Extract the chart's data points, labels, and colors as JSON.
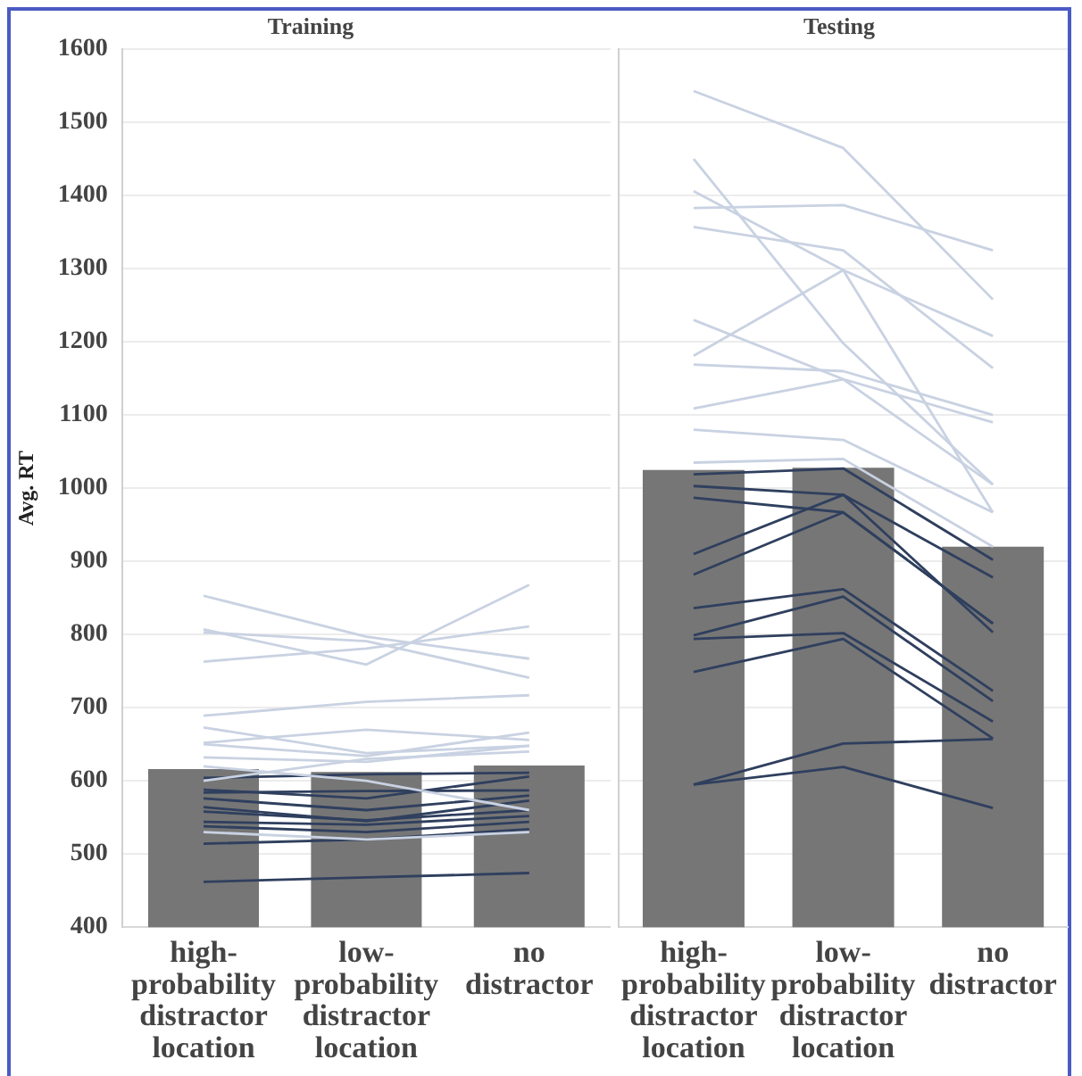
{
  "chart_data": [
    {
      "type": "bar",
      "title": "Training",
      "ylabel": "Avg. RT",
      "categories": [
        "high-probability distractor location",
        "low-probability distractor location",
        "no distractor"
      ],
      "ylim": [
        400,
        1600
      ],
      "yticks": [
        400,
        500,
        600,
        700,
        800,
        900,
        1000,
        1100,
        1200,
        1300,
        1400,
        1500,
        1600
      ],
      "grid": "y",
      "marker": "none",
      "line_style": "solid",
      "series": [
        {
          "color": "#767676",
          "values": [
            616,
            612,
            621
          ]
        },
        {
          "type": "line",
          "color": "#c9d2e2",
          "values": [
            853,
            797,
            767
          ]
        },
        {
          "type": "line",
          "color": "#c9d2e2",
          "values": [
            807,
            759,
            868
          ]
        },
        {
          "type": "line",
          "color": "#c9d2e2",
          "values": [
            803,
            791,
            741
          ]
        },
        {
          "type": "line",
          "color": "#c9d2e2",
          "values": [
            763,
            781,
            811
          ]
        },
        {
          "type": "line",
          "color": "#c9d2e2",
          "values": [
            689,
            708,
            717
          ]
        },
        {
          "type": "line",
          "color": "#c9d2e2",
          "values": [
            673,
            638,
            648
          ]
        },
        {
          "type": "line",
          "color": "#c9d2e2",
          "values": [
            652,
            670,
            656
          ]
        },
        {
          "type": "line",
          "color": "#c9d2e2",
          "values": [
            650,
            634,
            666
          ]
        },
        {
          "type": "line",
          "color": "#c9d2e2",
          "values": [
            632,
            626,
            648
          ]
        },
        {
          "type": "line",
          "color": "#c9d2e2",
          "values": [
            600,
            630,
            640
          ]
        },
        {
          "type": "line",
          "color": "#c9d2e2",
          "values": [
            620,
            600,
            560
          ]
        },
        {
          "type": "line",
          "color": "#c9d2e2",
          "values": [
            530,
            520,
            530
          ]
        },
        {
          "type": "line",
          "color": "#2f3f5e",
          "values": [
            604,
            609,
            611
          ]
        },
        {
          "type": "line",
          "color": "#2f3f5e",
          "values": [
            588,
            576,
            606
          ]
        },
        {
          "type": "line",
          "color": "#2f3f5e",
          "values": [
            584,
            586,
            587
          ]
        },
        {
          "type": "line",
          "color": "#2f3f5e",
          "values": [
            576,
            560,
            580
          ]
        },
        {
          "type": "line",
          "color": "#2f3f5e",
          "values": [
            564,
            545,
            573
          ]
        },
        {
          "type": "line",
          "color": "#2f3f5e",
          "values": [
            558,
            546,
            560
          ]
        },
        {
          "type": "line",
          "color": "#2f3f5e",
          "values": [
            544,
            540,
            552
          ]
        },
        {
          "type": "line",
          "color": "#2f3f5e",
          "values": [
            538,
            530,
            544
          ]
        },
        {
          "type": "line",
          "color": "#2f3f5e",
          "values": [
            514,
            520,
            534
          ]
        },
        {
          "type": "line",
          "color": "#2f3f5e",
          "values": [
            462,
            468,
            474
          ]
        }
      ]
    },
    {
      "type": "bar",
      "title": "Testing",
      "categories": [
        "high-probability distractor location",
        "low-probability distractor location",
        "no distractor"
      ],
      "ylim": [
        400,
        1600
      ],
      "yticks": [
        400,
        500,
        600,
        700,
        800,
        900,
        1000,
        1100,
        1200,
        1300,
        1400,
        1500,
        1600
      ],
      "tick_labels": "x",
      "grid": "y",
      "marker": "none",
      "line_style": "solid",
      "series": [
        {
          "color": "#767676",
          "values": [
            1025,
            1028,
            920
          ]
        },
        {
          "type": "line",
          "color": "#c9d2e2",
          "values": [
            1543,
            1465,
            1258
          ]
        },
        {
          "type": "line",
          "color": "#c9d2e2",
          "values": [
            1383,
            1387,
            1325
          ]
        },
        {
          "type": "line",
          "color": "#c9d2e2",
          "values": [
            1450,
            1198,
            1005
          ]
        },
        {
          "type": "line",
          "color": "#c9d2e2",
          "values": [
            1406,
            1298,
            1208
          ]
        },
        {
          "type": "line",
          "color": "#c9d2e2",
          "values": [
            1357,
            1325,
            1164
          ]
        },
        {
          "type": "line",
          "color": "#c9d2e2",
          "values": [
            1181,
            1298,
            967
          ]
        },
        {
          "type": "line",
          "color": "#c9d2e2",
          "values": [
            1230,
            1149,
            1090
          ]
        },
        {
          "type": "line",
          "color": "#c9d2e2",
          "values": [
            1169,
            1160,
            1100
          ]
        },
        {
          "type": "line",
          "color": "#c9d2e2",
          "values": [
            1109,
            1149,
            1005
          ]
        },
        {
          "type": "line",
          "color": "#c9d2e2",
          "values": [
            1080,
            1066,
            967
          ]
        },
        {
          "type": "line",
          "color": "#c9d2e2",
          "values": [
            1035,
            1040,
            920
          ]
        },
        {
          "type": "line",
          "color": "#2f3f5e",
          "values": [
            1019,
            1027,
            902
          ]
        },
        {
          "type": "line",
          "color": "#2f3f5e",
          "values": [
            1003,
            991,
            878
          ]
        },
        {
          "type": "line",
          "color": "#2f3f5e",
          "values": [
            987,
            967,
            815
          ]
        },
        {
          "type": "line",
          "color": "#2f3f5e",
          "values": [
            910,
            991,
            803
          ]
        },
        {
          "type": "line",
          "color": "#2f3f5e",
          "values": [
            882,
            967,
            815
          ]
        },
        {
          "type": "line",
          "color": "#2f3f5e",
          "values": [
            836,
            862,
            723
          ]
        },
        {
          "type": "line",
          "color": "#2f3f5e",
          "values": [
            799,
            852,
            709
          ]
        },
        {
          "type": "line",
          "color": "#2f3f5e",
          "values": [
            794,
            802,
            681
          ]
        },
        {
          "type": "line",
          "color": "#2f3f5e",
          "values": [
            749,
            794,
            658
          ]
        },
        {
          "type": "line",
          "color": "#2f3f5e",
          "values": [
            595,
            651,
            657
          ]
        },
        {
          "type": "line",
          "color": "#2f3f5e",
          "values": [
            595,
            619,
            563
          ]
        }
      ]
    }
  ]
}
